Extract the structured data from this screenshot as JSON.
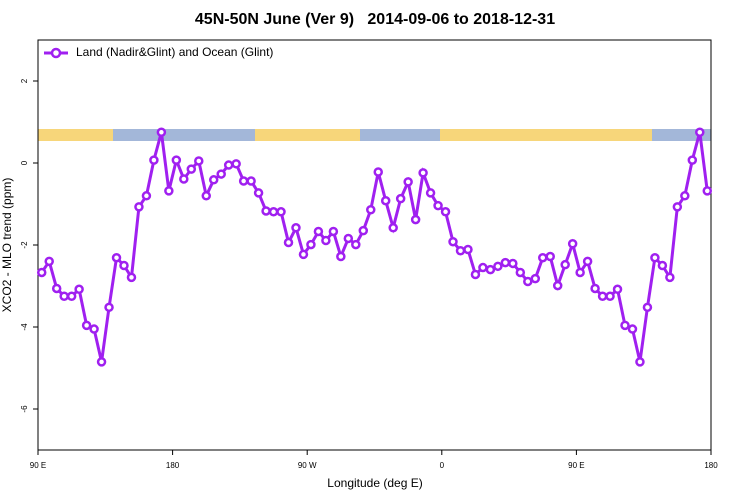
{
  "chart_data": {
    "type": "line",
    "title": "45N-50N June (Ver 9)   2014-09-06 to 2018-12-31",
    "x_label": "Longitude (deg E)",
    "y_label": "XCO2 - MLO trend (ppm)",
    "xlim": [
      90,
      540
    ],
    "ylim": [
      -7,
      3
    ],
    "xticks": [
      {
        "value": 90,
        "label": "90 E"
      },
      180,
      {
        "value": 270,
        "label": "90 W"
      },
      {
        "value": 360,
        "label": "0"
      },
      {
        "value": 450,
        "label": "90 E"
      },
      {
        "value": 540,
        "label": "180"
      }
    ],
    "yticks": [
      2,
      0,
      -2,
      -4,
      -6
    ],
    "legend": "top-left",
    "x": [
      92.5,
      97.5,
      102.5,
      107.5,
      112.5,
      117.5,
      122.5,
      127.5,
      132.5,
      137.5,
      142.5,
      147.5,
      152.5,
      157.5,
      162.5,
      167.5,
      172.5,
      177.5,
      182.5,
      187.5,
      192.5,
      197.5,
      202.5,
      207.5,
      212.5,
      217.5,
      222.5,
      227.5,
      232.5,
      237.5,
      242.5,
      247.5,
      252.5,
      257.5,
      262.5,
      267.5,
      272.5,
      277.5,
      282.5,
      287.5,
      292.5,
      297.5,
      302.5,
      307.5,
      312.5,
      317.5,
      322.5,
      327.5,
      332.5,
      337.5,
      342.5,
      347.5,
      352.5,
      357.5,
      362.5,
      367.5,
      372.5,
      377.5,
      382.5,
      387.5,
      392.5,
      397.5,
      402.5,
      407.5,
      412.5,
      417.5,
      422.5,
      427.5,
      432.5,
      437.5,
      442.5,
      447.5,
      452.5,
      457.5,
      462.5,
      467.5,
      472.5,
      477.5,
      482.5,
      487.5,
      492.5,
      497.5,
      502.5,
      507.5,
      512.5,
      517.5,
      522.5,
      527.5,
      532.5,
      537.5
    ],
    "series": [
      {
        "name": "Land (Nadir&Glint) and Ocean (Glint)",
        "color": "#a020f0",
        "values": [
          -2.67,
          -2.4,
          -3.06,
          -3.25,
          -3.25,
          -3.08,
          -3.96,
          -4.05,
          -4.85,
          -3.52,
          -2.31,
          -2.5,
          -2.79,
          -1.07,
          -0.8,
          0.07,
          0.75,
          -0.68,
          0.07,
          -0.39,
          -0.15,
          0.05,
          -0.8,
          -0.41,
          -0.27,
          -0.05,
          -0.02,
          -0.44,
          -0.44,
          -0.73,
          -1.17,
          -1.19,
          -1.19,
          -1.94,
          -1.58,
          -2.23,
          -1.99,
          -1.67,
          -1.89,
          -1.67,
          -2.28,
          -1.84,
          -1.99,
          -1.65,
          -1.14,
          -0.22,
          -0.92,
          -1.58,
          -0.87,
          -0.46,
          -1.38,
          -0.24,
          -0.73,
          -1.04,
          -1.19,
          -1.92,
          -2.14,
          -2.11,
          -2.72,
          -2.55,
          -2.6,
          -2.52,
          -2.43,
          -2.45,
          -2.67,
          -2.89,
          -2.82,
          -2.31,
          -2.28,
          -2.99,
          -2.48,
          -1.97,
          -2.67,
          -2.4,
          -3.06,
          -3.25,
          -3.25,
          -3.08,
          -3.96,
          -4.05,
          -4.85,
          -3.52,
          -2.31,
          -2.5,
          -2.79,
          -1.07,
          -0.8,
          0.07,
          0.75,
          -0.68
        ]
      }
    ]
  }
}
